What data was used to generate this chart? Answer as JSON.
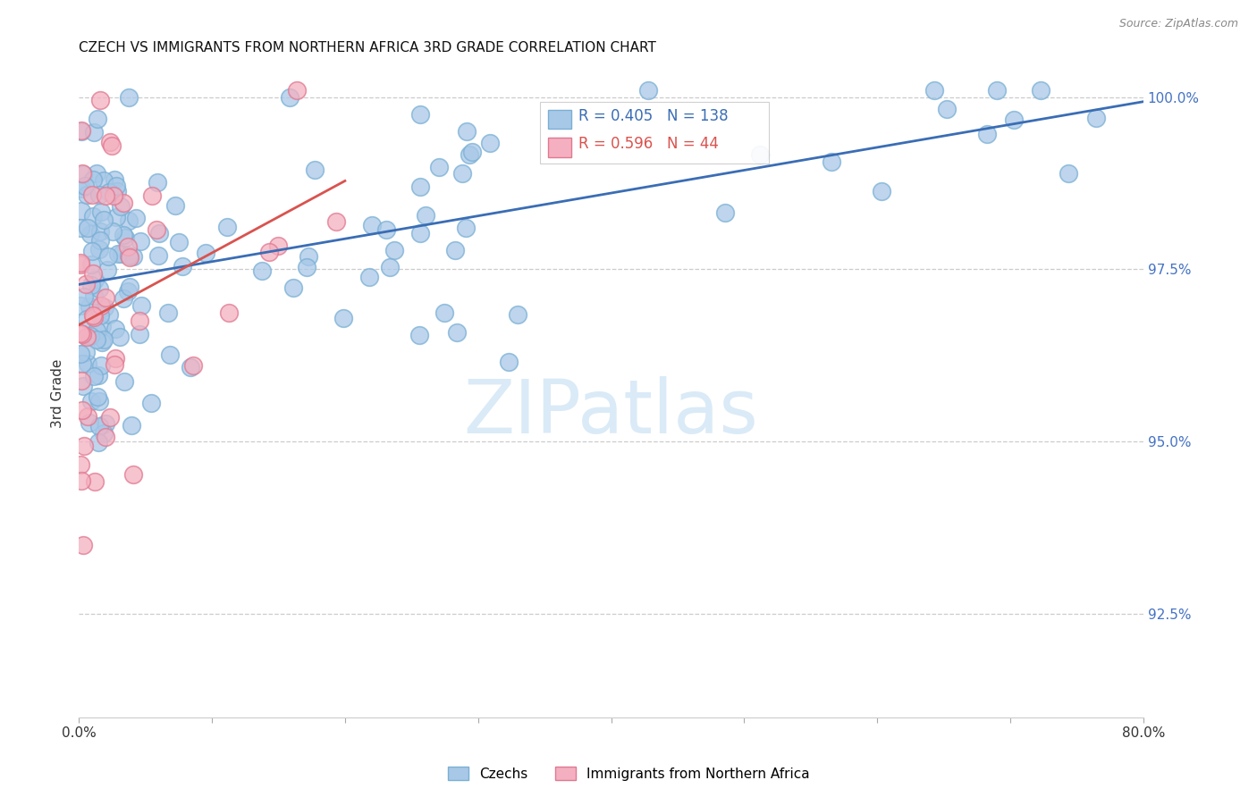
{
  "title": "CZECH VS IMMIGRANTS FROM NORTHERN AFRICA 3RD GRADE CORRELATION CHART",
  "source": "Source: ZipAtlas.com",
  "ylabel": "3rd Grade",
  "ytick_values": [
    0.925,
    0.95,
    0.975,
    1.0
  ],
  "ytick_labels": [
    "92.5%",
    "95.0%",
    "97.5%",
    "100.0%"
  ],
  "xlim": [
    0.0,
    0.8
  ],
  "ylim": [
    0.91,
    1.004
  ],
  "legend_czechs": "Czechs",
  "legend_immigrants": "Immigrants from Northern Africa",
  "r_czechs": 0.405,
  "n_czechs": 138,
  "r_immigrants": 0.596,
  "n_immigrants": 44,
  "czechs_color": "#a8c8e8",
  "czechs_edge": "#7aafd4",
  "immigrants_color": "#f4b0c0",
  "immigrants_edge": "#e07890",
  "trend_czechs_color": "#3a6db5",
  "trend_immigrants_color": "#d9534f",
  "watermark": "ZIPatlas",
  "watermark_color": "#daeaf7",
  "background_color": "#ffffff",
  "grid_color": "#cccccc"
}
